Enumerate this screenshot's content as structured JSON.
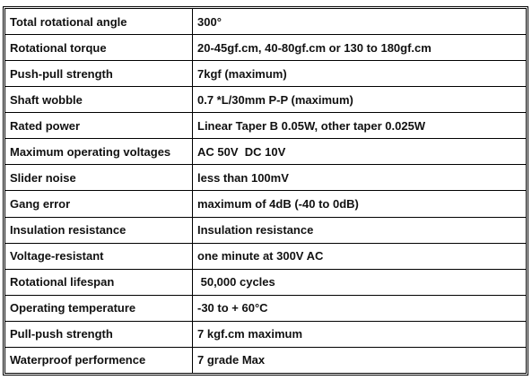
{
  "table": {
    "rows": [
      [
        "Total rotational angle",
        "300°"
      ],
      [
        "Rotational torque",
        "20-45gf.cm, 40-80gf.cm or 130 to 180gf.cm"
      ],
      [
        "Push-pull strength",
        "7kgf (maximum)"
      ],
      [
        "Shaft wobble",
        "0.7 *L/30mm P-P (maximum)"
      ],
      [
        "Rated power",
        "Linear Taper B 0.05W, other taper 0.025W"
      ],
      [
        "Maximum operating voltages",
        "AC 50V  DC 10V"
      ],
      [
        "Slider noise",
        "less than 100mV"
      ],
      [
        "Gang error",
        "maximum of 4dB (-40 to 0dB)"
      ],
      [
        "Insulation resistance",
        "Insulation resistance"
      ],
      [
        "Voltage-resistant",
        "one minute at 300V AC"
      ],
      [
        "Rotational lifespan",
        " 50,000 cycles"
      ],
      [
        "Operating temperature",
        "-30 to + 60°C"
      ],
      [
        "Pull-push strength",
        "7 kgf.cm maximum"
      ],
      [
        "Waterproof performence",
        "7 grade Max"
      ]
    ]
  }
}
